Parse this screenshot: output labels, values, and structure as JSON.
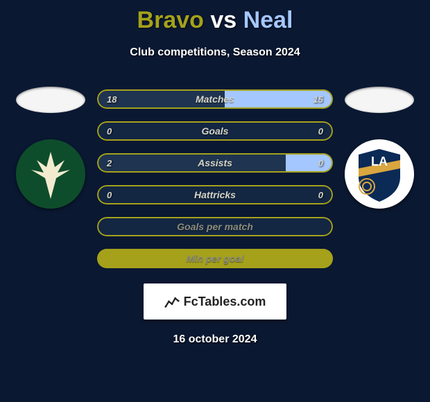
{
  "title": {
    "player_left": "Bravo",
    "vs": "vs",
    "player_right": "Neal",
    "left_color": "#a5a11b",
    "vs_color": "#ffffff",
    "right_color": "#a5c7ff"
  },
  "subtitle": "Club competitions, Season 2024",
  "date": "16 october 2024",
  "colors": {
    "background": "#0a1832",
    "left_accent": "#a5a11b",
    "right_accent": "#a5c7ff",
    "bar_border": "#a5a11b",
    "bar_fill_left_yellow": "#a5a11b",
    "bar_fill_left_dark": "#1e3450",
    "bar_left_track": "#132642",
    "bar_value_text": "#d6d6c8",
    "bar_label_text": "#8c8d7a"
  },
  "crest_left": {
    "bg": "#0e4d2b",
    "axe": "#f2ebd0",
    "stripes": "#f7c12a"
  },
  "crest_right": {
    "bg": "#ffffff",
    "shield_top": "#0b2a55",
    "shield_bottom": "#0b2a55",
    "gold": "#d9a63f",
    "text_la": "LA"
  },
  "stats": [
    {
      "label": "Matches",
      "left_value": "18",
      "right_value": "15",
      "left_fill_pct": 54,
      "right_fill_pct": 46,
      "left_style": "dark",
      "right_style": "blue",
      "track": "yellow_left"
    },
    {
      "label": "Goals",
      "left_value": "0",
      "right_value": "0",
      "left_fill_pct": 0,
      "right_fill_pct": 0,
      "left_style": "dark",
      "right_style": "blue",
      "track": "none"
    },
    {
      "label": "Assists",
      "left_value": "2",
      "right_value": "0",
      "left_fill_pct": 80,
      "right_fill_pct": 20,
      "left_style": "dark",
      "right_style": "blue",
      "track": "yellow_left"
    },
    {
      "label": "Hattricks",
      "left_value": "0",
      "right_value": "0",
      "left_fill_pct": 0,
      "right_fill_pct": 0,
      "left_style": "dark",
      "right_style": "blue",
      "track": "none"
    },
    {
      "label": "Goals per match",
      "left_value": "",
      "right_value": "",
      "left_fill_pct": 0,
      "right_fill_pct": 0,
      "left_style": "dark",
      "right_style": "blue",
      "track": "none",
      "solid_yellow_label": true
    },
    {
      "label": "Min per goal",
      "left_value": "",
      "right_value": "",
      "left_fill_pct": 0,
      "right_fill_pct": 0,
      "left_style": "dark",
      "right_style": "blue",
      "track": "none",
      "solid_yellow_block": true
    }
  ],
  "watermark": {
    "text": "FcTables.com"
  }
}
